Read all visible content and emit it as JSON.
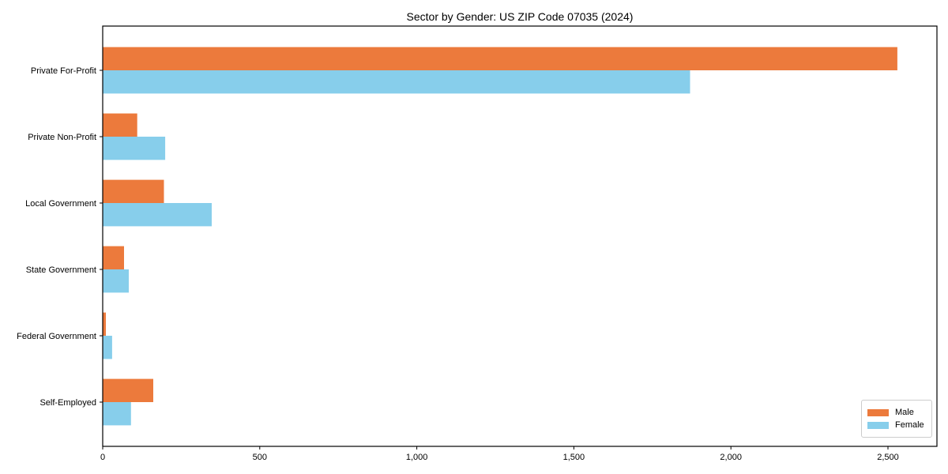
{
  "chart_data": {
    "type": "bar",
    "orientation": "horizontal",
    "title": "Sector by Gender: US ZIP Code 07035 (2024)",
    "categories": [
      "Private For-Profit",
      "Private Non-Profit",
      "Local Government",
      "State Government",
      "Federal Government",
      "Self-Employed"
    ],
    "series": [
      {
        "name": "Male",
        "color": "#EC7A3C",
        "values": [
          2530,
          110,
          195,
          68,
          10,
          161
        ]
      },
      {
        "name": "Female",
        "color": "#87CEEB",
        "values": [
          1870,
          199,
          347,
          83,
          30,
          90
        ]
      }
    ],
    "xlim": [
      0,
      2656
    ],
    "xticks": [
      0,
      500,
      1000,
      1500,
      2000,
      2500
    ],
    "xtick_labels": [
      "0",
      "500",
      "1,000",
      "1,500",
      "2,000",
      "2,500"
    ],
    "xlabel": "",
    "ylabel": "",
    "grid": false,
    "legend_position": "lower right",
    "axis_color": "#000000",
    "background_color": "#ffffff"
  }
}
